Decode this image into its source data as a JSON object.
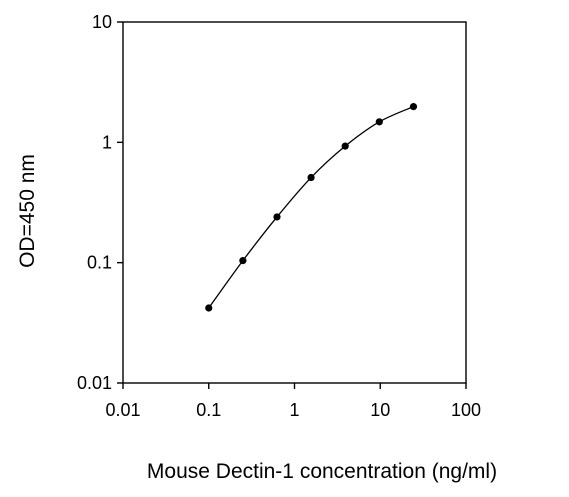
{
  "chart_data": {
    "type": "line",
    "title": "",
    "xlabel": "Mouse Dectin-1 concentration (ng/ml)",
    "ylabel": "OD=450 nm",
    "xscale": "log",
    "yscale": "log",
    "xlim": [
      0.01,
      100
    ],
    "ylim": [
      0.01,
      10
    ],
    "x_ticks": [
      "0.01",
      "0.1",
      "1",
      "10",
      "100"
    ],
    "y_ticks": [
      "0.01",
      "0.1",
      "1",
      "10"
    ],
    "grid": false,
    "legend": "none",
    "series": [
      {
        "x": [
          0.1,
          0.25,
          0.625,
          1.56,
          3.9,
          9.75,
          24.4
        ],
        "y": [
          0.042,
          0.104,
          0.24,
          0.51,
          0.93,
          1.48,
          1.98
        ]
      }
    ],
    "colors": {
      "line": "#000000",
      "marker": "#000000",
      "frame": "#000000"
    }
  }
}
